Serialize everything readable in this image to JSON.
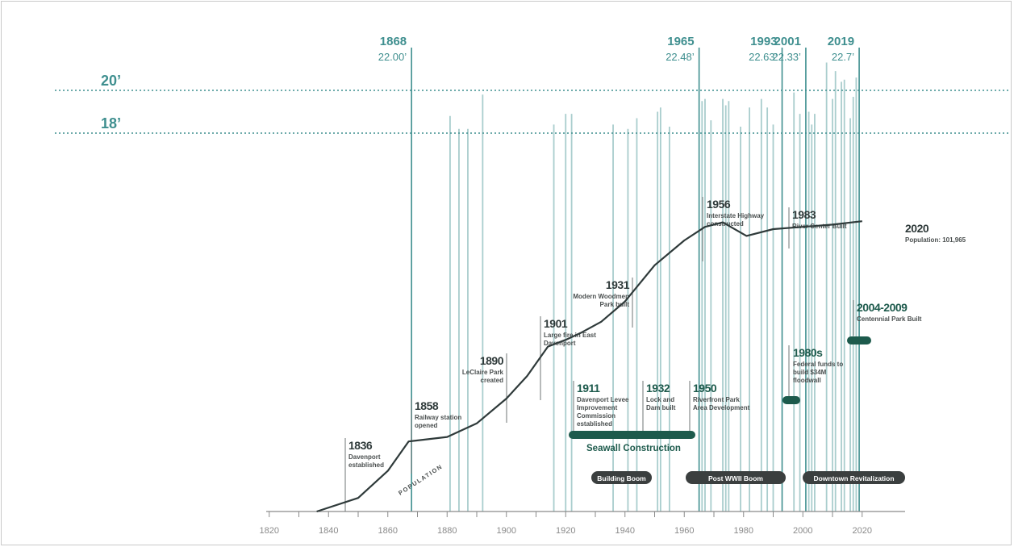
{
  "chart_data": {
    "type": "line",
    "colors": {
      "teal": "#3f8f8f",
      "teal_light": "#a9cdcd",
      "dark": "#2f3a3a",
      "green": "#1d5a4c",
      "pill": "#3b3f3f",
      "axis": "#8a8a8a"
    },
    "xlim": [
      1810,
      2020
    ],
    "x_ticks": [
      "1820",
      "1840",
      "1860",
      "1880",
      "1900",
      "1920",
      "1940",
      "1960",
      "1980",
      "2000",
      "2020"
    ],
    "series": [
      {
        "name": "POPULATION",
        "x": [
          1836,
          1850,
          1860,
          1867,
          1880,
          1890,
          1900,
          1907,
          1914,
          1920,
          1925,
          1932,
          1940,
          1950,
          1960,
          1967,
          1973,
          1981,
          1990,
          2000,
          2010,
          2020
        ],
        "y": [
          0,
          6,
          18,
          31,
          33,
          39,
          50,
          60,
          73,
          76,
          79,
          84,
          93,
          109,
          120,
          126,
          128,
          122,
          125,
          126,
          127,
          128.5
        ]
      }
    ],
    "reference_lines": [
      {
        "label": "20’",
        "level": 20
      },
      {
        "label": "18’",
        "level": 18
      }
    ],
    "flood_levels_ft": [
      {
        "x": 1868,
        "y": 22.0,
        "year": "1868",
        "value": "22.00’"
      },
      {
        "x": 1881,
        "y": 18.8
      },
      {
        "x": 1884,
        "y": 18.2
      },
      {
        "x": 1887,
        "y": 18.2
      },
      {
        "x": 1892,
        "y": 19.8
      },
      {
        "x": 1916,
        "y": 18.4
      },
      {
        "x": 1920,
        "y": 18.9
      },
      {
        "x": 1922,
        "y": 18.9
      },
      {
        "x": 1936,
        "y": 18.4
      },
      {
        "x": 1941,
        "y": 18.2
      },
      {
        "x": 1944,
        "y": 18.7
      },
      {
        "x": 1951,
        "y": 19.0
      },
      {
        "x": 1952,
        "y": 19.2
      },
      {
        "x": 1955,
        "y": 18.3
      },
      {
        "x": 1965,
        "y": 22.48,
        "year": "1965",
        "value": "22.48’"
      },
      {
        "x": 1966,
        "y": 19.5
      },
      {
        "x": 1967,
        "y": 19.6
      },
      {
        "x": 1969,
        "y": 18.6
      },
      {
        "x": 1973,
        "y": 19.6
      },
      {
        "x": 1974,
        "y": 19.3
      },
      {
        "x": 1975,
        "y": 19.5
      },
      {
        "x": 1979,
        "y": 18.3
      },
      {
        "x": 1982,
        "y": 19.2
      },
      {
        "x": 1986,
        "y": 19.6
      },
      {
        "x": 1988,
        "y": 19.2
      },
      {
        "x": 1990,
        "y": 18.4
      },
      {
        "x": 1993,
        "y": 22.63,
        "year": "1993",
        "value": "22.63’"
      },
      {
        "x": 1997,
        "y": 19.9
      },
      {
        "x": 1999,
        "y": 18.9
      },
      {
        "x": 2001,
        "y": 22.33,
        "year": "2001",
        "value": "22.33’"
      },
      {
        "x": 2002,
        "y": 19.0
      },
      {
        "x": 2003,
        "y": 18.4
      },
      {
        "x": 2004,
        "y": 18.9
      },
      {
        "x": 2008,
        "y": 21.3
      },
      {
        "x": 2010,
        "y": 19.6
      },
      {
        "x": 2011,
        "y": 20.9
      },
      {
        "x": 2013,
        "y": 20.4
      },
      {
        "x": 2014,
        "y": 20.5
      },
      {
        "x": 2016,
        "y": 18.7
      },
      {
        "x": 2017,
        "y": 19.7
      },
      {
        "x": 2018,
        "y": 20.6
      },
      {
        "x": 2019,
        "y": 22.7,
        "year": "2019",
        "value": "22.7’"
      }
    ],
    "events": [
      {
        "year": "1836",
        "text": [
          "Davenport",
          "established"
        ]
      },
      {
        "year": "1858",
        "text": [
          "Railway station",
          "opened"
        ]
      },
      {
        "year": "1890",
        "text": [
          "LeClaire Park",
          "created"
        ]
      },
      {
        "year": "1901",
        "text": [
          "Large fire in East",
          "Davenport"
        ]
      },
      {
        "year": "1931",
        "text": [
          "Modern Woodmen",
          "Park built"
        ]
      },
      {
        "year": "1956",
        "text": [
          "Interstate Highway",
          "constructed"
        ]
      },
      {
        "year": "1983",
        "text": [
          "River Center Built"
        ]
      },
      {
        "year": "2020",
        "text": [
          "Population: 101,965"
        ]
      },
      {
        "year": "1911",
        "text": [
          "Davenport Levee",
          "Improvement",
          "Commission",
          "established"
        ]
      },
      {
        "year": "1932",
        "text": [
          "Lock and",
          "Dam built"
        ]
      },
      {
        "year": "1950",
        "text": [
          "Riverfront Park",
          "Area Development"
        ]
      },
      {
        "year": "1980s",
        "text": [
          "Federal funds to",
          "build $34M",
          "floodwall"
        ]
      },
      {
        "year": "2004-2009",
        "text": [
          "Centennial Park Built"
        ]
      }
    ],
    "spans": [
      {
        "label": "Seawall Construction",
        "start": 1911,
        "end": 1950
      },
      {
        "label": "",
        "start": 1981,
        "end": 1986
      },
      {
        "label": "",
        "start": 2003,
        "end": 2010
      }
    ],
    "eras": [
      {
        "label": "Building Boom",
        "start": 1918,
        "end": 1936
      },
      {
        "label": "Post WWII Boom",
        "start": 1950,
        "end": 1974
      },
      {
        "label": "Downtown Revitalization",
        "start": 1990,
        "end": 2019
      }
    ],
    "grid": false,
    "legend": "none"
  }
}
